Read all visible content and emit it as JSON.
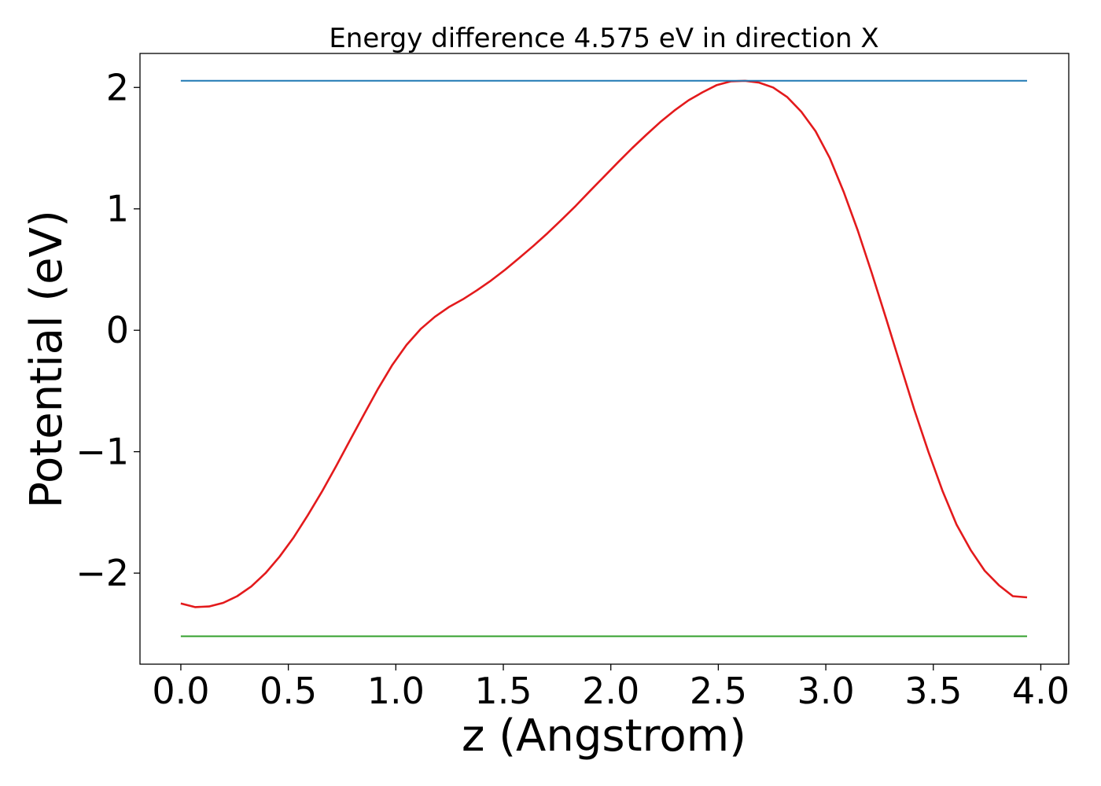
{
  "chart_data": {
    "type": "line",
    "title": "Energy difference 4.575 eV in direction X",
    "xlabel": "z (Angstrom)",
    "ylabel": "Potential (eV)",
    "xlim": [
      -0.19,
      4.13
    ],
    "ylim": [
      -2.75,
      2.28
    ],
    "grid": false,
    "legend": "none",
    "x_ticks": [
      {
        "value": 0.0,
        "label": "0.0"
      },
      {
        "value": 0.5,
        "label": "0.5"
      },
      {
        "value": 1.0,
        "label": "1.0"
      },
      {
        "value": 1.5,
        "label": "1.5"
      },
      {
        "value": 2.0,
        "label": "2.0"
      },
      {
        "value": 2.5,
        "label": "2.5"
      },
      {
        "value": 3.0,
        "label": "3.0"
      },
      {
        "value": 3.5,
        "label": "3.5"
      },
      {
        "value": 4.0,
        "label": "4.0"
      }
    ],
    "y_ticks": [
      {
        "value": -2,
        "label": "−2"
      },
      {
        "value": -1,
        "label": "−1"
      },
      {
        "value": 0,
        "label": "0"
      },
      {
        "value": 1,
        "label": "1"
      },
      {
        "value": 2,
        "label": "2"
      }
    ],
    "series": [
      {
        "color": "#e31a1c",
        "x": [
          0.0,
          0.066,
          0.131,
          0.197,
          0.262,
          0.328,
          0.394,
          0.459,
          0.525,
          0.59,
          0.656,
          0.722,
          0.787,
          0.853,
          0.918,
          0.984,
          1.05,
          1.115,
          1.181,
          1.246,
          1.312,
          1.378,
          1.443,
          1.509,
          1.574,
          1.64,
          1.706,
          1.771,
          1.837,
          1.902,
          1.968,
          2.034,
          2.099,
          2.165,
          2.23,
          2.296,
          2.362,
          2.427,
          2.493,
          2.558,
          2.624,
          2.69,
          2.755,
          2.821,
          2.886,
          2.952,
          3.018,
          3.083,
          3.149,
          3.214,
          3.28,
          3.346,
          3.411,
          3.477,
          3.542,
          3.608,
          3.674,
          3.739,
          3.805,
          3.87,
          3.936
        ],
        "y": [
          -2.25,
          -2.28,
          -2.275,
          -2.245,
          -2.19,
          -2.11,
          -2.0,
          -1.865,
          -1.705,
          -1.525,
          -1.33,
          -1.12,
          -0.905,
          -0.69,
          -0.48,
          -0.285,
          -0.12,
          0.01,
          0.11,
          0.19,
          0.255,
          0.33,
          0.41,
          0.5,
          0.595,
          0.695,
          0.8,
          0.91,
          1.025,
          1.145,
          1.265,
          1.385,
          1.5,
          1.61,
          1.715,
          1.81,
          1.895,
          1.96,
          2.02,
          2.05,
          2.055,
          2.04,
          2.0,
          1.92,
          1.8,
          1.64,
          1.42,
          1.14,
          0.82,
          0.47,
          0.1,
          -0.28,
          -0.65,
          -1.0,
          -1.32,
          -1.6,
          -1.81,
          -1.98,
          -2.1,
          -2.19,
          -2.2
        ]
      },
      {
        "color": "#1f78b4",
        "x": [
          0.0,
          3.936
        ],
        "y": [
          2.055,
          2.055
        ]
      },
      {
        "color": "#33a02c",
        "x": [
          0.0,
          3.936
        ],
        "y": [
          -2.52,
          -2.52
        ]
      }
    ]
  }
}
